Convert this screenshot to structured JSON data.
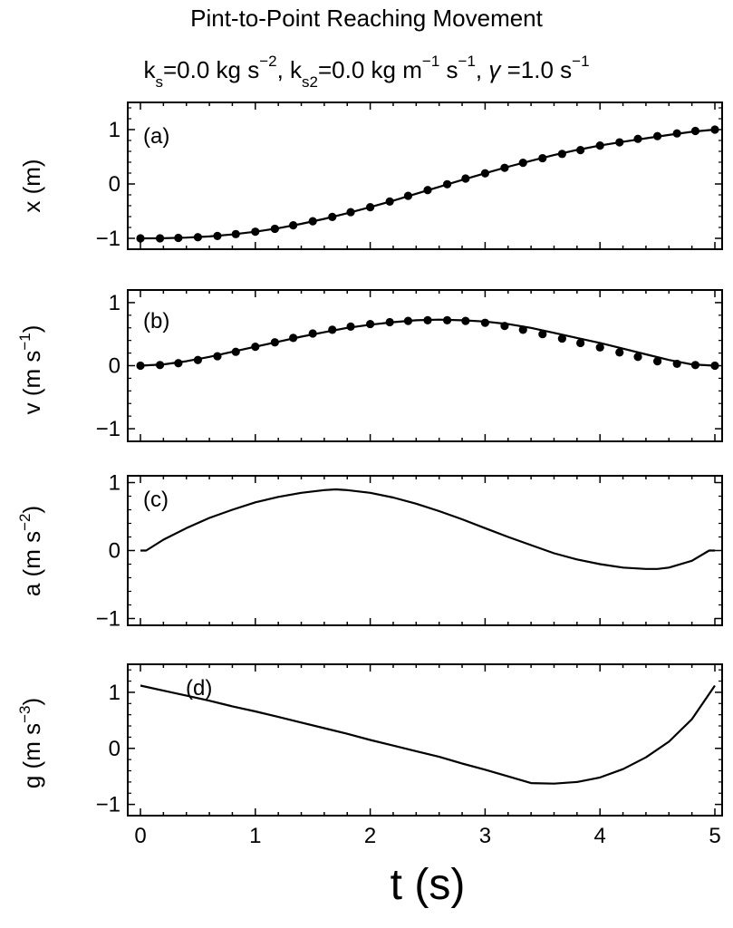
{
  "title": "Pint-to-Point Reaching Movement",
  "subtitle": {
    "ks_sym": "k",
    "ks_sub": "s",
    "ks_val": "=0.0 kg s",
    "ks_exp": "−2",
    "sep1": ", ",
    "ks2_sym": "k",
    "ks2_sub": "s2",
    "ks2_val": "=0.0 kg m",
    "ks2_exp1": "−1",
    "ks2_mid": " s",
    "ks2_exp2": "−1",
    "sep2": ",  ",
    "gamma_sym": "γ",
    "gamma_val": " =1.0 s",
    "gamma_exp": "−1"
  },
  "x_axis": {
    "label": "t (s)",
    "range": [
      0,
      5
    ],
    "ticks": [
      "0",
      "1",
      "2",
      "3",
      "4",
      "5"
    ]
  },
  "chart_data": [
    {
      "type": "line",
      "panel": "(a)",
      "ylabel": "x (m)",
      "ylim": [
        -1.2,
        1.5
      ],
      "yticks": [
        "-1",
        "0",
        "1"
      ],
      "x": [
        0,
        0.2,
        0.4,
        0.6,
        0.8,
        1.0,
        1.2,
        1.4,
        1.6,
        1.8,
        2.0,
        2.2,
        2.4,
        2.6,
        2.8,
        3.0,
        3.2,
        3.4,
        3.6,
        3.8,
        4.0,
        4.2,
        4.4,
        4.6,
        4.8,
        5.0
      ],
      "line_values": [
        -1.0,
        -0.998,
        -0.987,
        -0.965,
        -0.929,
        -0.878,
        -0.813,
        -0.734,
        -0.642,
        -0.539,
        -0.427,
        -0.306,
        -0.18,
        -0.053,
        0.073,
        0.196,
        0.316,
        0.427,
        0.532,
        0.625,
        0.706,
        0.776,
        0.84,
        0.901,
        0.96,
        1.0
      ],
      "markers_x": [
        0,
        0.17,
        0.33,
        0.5,
        0.67,
        0.83,
        1.0,
        1.17,
        1.33,
        1.5,
        1.67,
        1.83,
        2.0,
        2.17,
        2.33,
        2.5,
        2.67,
        2.83,
        3.0,
        3.17,
        3.33,
        3.5,
        3.67,
        3.83,
        4.0,
        4.17,
        4.33,
        4.5,
        4.67,
        4.83,
        5.0
      ],
      "markers_y": [
        -1.0,
        -0.999,
        -0.992,
        -0.979,
        -0.956,
        -0.922,
        -0.878,
        -0.824,
        -0.76,
        -0.686,
        -0.606,
        -0.518,
        -0.427,
        -0.323,
        -0.218,
        -0.112,
        -0.005,
        0.1,
        0.196,
        0.297,
        0.39,
        0.474,
        0.553,
        0.623,
        0.706,
        0.766,
        0.83,
        0.88,
        0.93,
        0.975,
        1.0
      ],
      "line_color": "#000000",
      "marker_color": "#000000"
    },
    {
      "type": "line",
      "panel": "(b)",
      "ylabel": "v (m s",
      "ylabel_exp": "−1",
      "ylabel_close": ")",
      "ylim": [
        -1.2,
        1.2
      ],
      "yticks": [
        "-1",
        "0",
        "1"
      ],
      "x": [
        0,
        0.2,
        0.4,
        0.6,
        0.8,
        1.0,
        1.2,
        1.4,
        1.6,
        1.8,
        2.0,
        2.2,
        2.4,
        2.6,
        2.8,
        3.0,
        3.2,
        3.4,
        3.6,
        3.8,
        4.0,
        4.2,
        4.4,
        4.6,
        4.8,
        5.0
      ],
      "line_values": [
        0,
        0.02,
        0.07,
        0.14,
        0.22,
        0.3,
        0.38,
        0.46,
        0.53,
        0.6,
        0.65,
        0.69,
        0.72,
        0.73,
        0.72,
        0.7,
        0.66,
        0.6,
        0.52,
        0.44,
        0.36,
        0.27,
        0.18,
        0.09,
        0.02,
        0
      ],
      "markers_x": [
        0,
        0.17,
        0.33,
        0.5,
        0.67,
        0.83,
        1.0,
        1.17,
        1.33,
        1.5,
        1.67,
        1.83,
        2.0,
        2.17,
        2.33,
        2.5,
        2.67,
        2.83,
        3.0,
        3.17,
        3.33,
        3.5,
        3.67,
        3.83,
        4.0,
        4.17,
        4.33,
        4.5,
        4.67,
        4.83,
        5.0
      ],
      "markers_y": [
        0,
        0.01,
        0.04,
        0.09,
        0.15,
        0.22,
        0.3,
        0.37,
        0.44,
        0.51,
        0.57,
        0.62,
        0.66,
        0.69,
        0.71,
        0.72,
        0.72,
        0.71,
        0.68,
        0.63,
        0.57,
        0.5,
        0.43,
        0.36,
        0.29,
        0.21,
        0.14,
        0.07,
        0.03,
        0.01,
        0
      ],
      "line_color": "#000000",
      "marker_color": "#000000"
    },
    {
      "type": "line",
      "panel": "(c)",
      "ylabel": "a (m s",
      "ylabel_exp": "−2",
      "ylabel_close": ")",
      "ylim": [
        -1.1,
        1.1
      ],
      "yticks": [
        "-1",
        "0",
        "1"
      ],
      "x": [
        0,
        0.05,
        0.2,
        0.4,
        0.6,
        0.8,
        1.0,
        1.2,
        1.4,
        1.6,
        1.7,
        1.8,
        2.0,
        2.2,
        2.4,
        2.6,
        2.8,
        3.0,
        3.2,
        3.4,
        3.6,
        3.8,
        4.0,
        4.2,
        4.4,
        4.5,
        4.6,
        4.8,
        4.95,
        5.0
      ],
      "line_values": [
        0,
        0,
        0.16,
        0.33,
        0.48,
        0.6,
        0.71,
        0.79,
        0.85,
        0.89,
        0.9,
        0.89,
        0.85,
        0.78,
        0.69,
        0.58,
        0.46,
        0.33,
        0.2,
        0.08,
        -0.04,
        -0.13,
        -0.2,
        -0.25,
        -0.27,
        -0.27,
        -0.25,
        -0.15,
        0,
        0
      ],
      "line_color": "#000000"
    },
    {
      "type": "line",
      "panel": "(d)",
      "ylabel": "g (m s",
      "ylabel_exp": "−3",
      "ylabel_close": ")",
      "ylim": [
        -1.2,
        1.5
      ],
      "yticks": [
        "-1",
        "0",
        "1"
      ],
      "x": [
        0,
        0.2,
        0.4,
        0.6,
        0.8,
        1.0,
        1.2,
        1.4,
        1.6,
        1.8,
        2.0,
        2.2,
        2.4,
        2.6,
        2.8,
        3.0,
        3.2,
        3.4,
        3.6,
        3.8,
        4.0,
        4.2,
        4.4,
        4.6,
        4.8,
        5.0
      ],
      "line_values": [
        1.12,
        1.03,
        0.94,
        0.85,
        0.75,
        0.66,
        0.56,
        0.46,
        0.36,
        0.26,
        0.15,
        0.05,
        -0.05,
        -0.15,
        -0.27,
        -0.38,
        -0.5,
        -0.62,
        -0.63,
        -0.6,
        -0.52,
        -0.37,
        -0.16,
        0.12,
        0.52,
        1.12
      ],
      "line_color": "#000000"
    }
  ]
}
